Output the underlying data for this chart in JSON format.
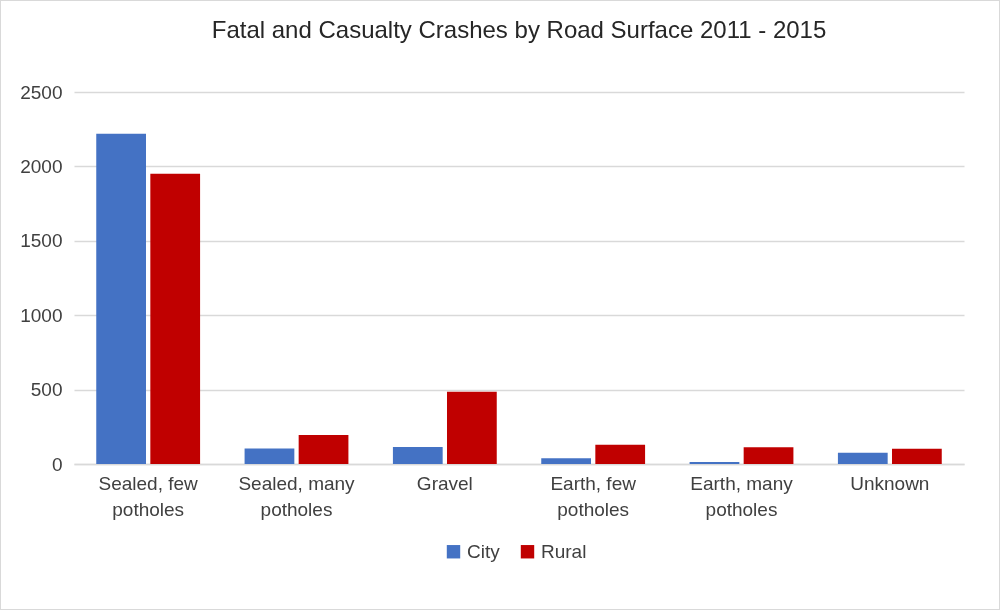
{
  "chart_data": {
    "type": "bar",
    "title": "Fatal and Casualty Crashes by Road Surface 2011 - 2015",
    "categories": [
      "Sealed, few potholes",
      "Sealed, many potholes",
      "Gravel",
      "Earth, few potholes",
      "Earth, many potholes",
      "Unknown"
    ],
    "series": [
      {
        "name": "City",
        "color": "#4472c4",
        "values": [
          2220,
          105,
          115,
          38,
          14,
          75
        ]
      },
      {
        "name": "Rural",
        "color": "#c00000",
        "values": [
          1950,
          195,
          485,
          130,
          113,
          102
        ]
      }
    ],
    "ylim": [
      0,
      2500
    ],
    "yticks": [
      0,
      500,
      1000,
      1500,
      2000,
      2500
    ],
    "grid": "y",
    "legend": "bottom"
  }
}
